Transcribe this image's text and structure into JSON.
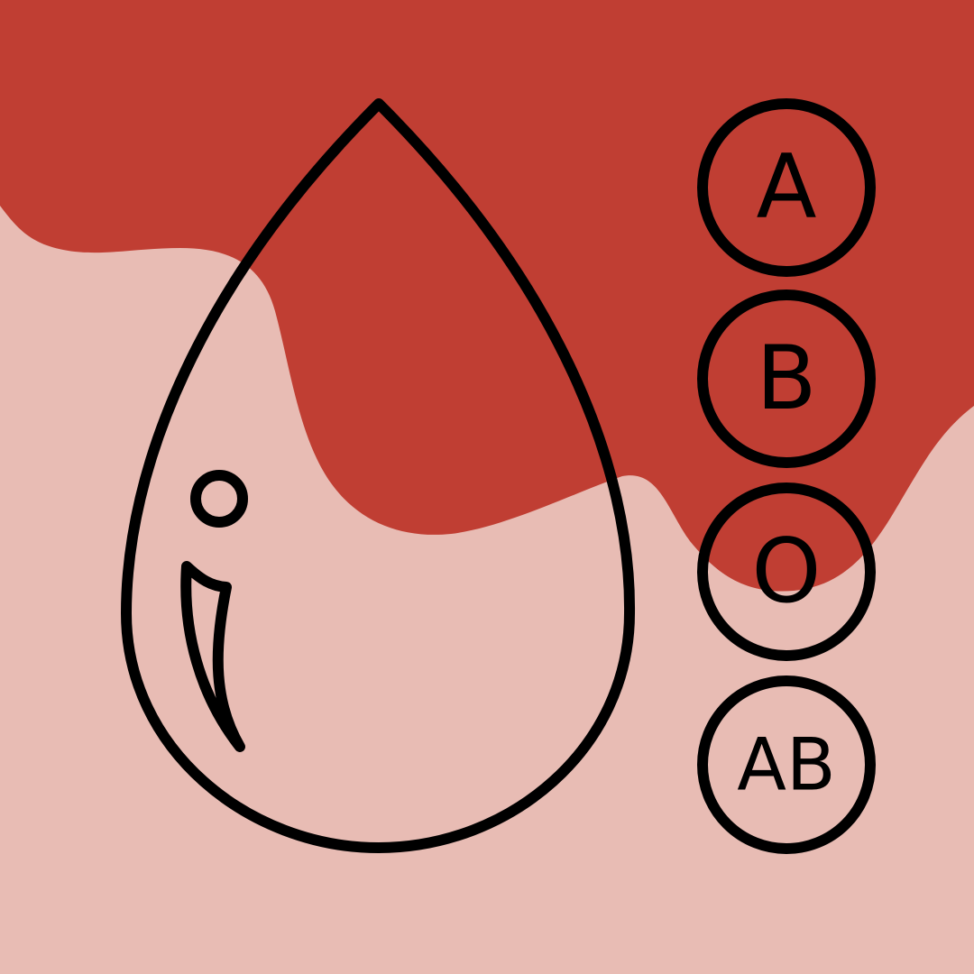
{
  "colors": {
    "background": "#e8bcb4",
    "blood": "#c03e33",
    "outline": "#000000"
  },
  "blood_types": [
    {
      "label": "A",
      "icon": "blood-type-a-icon"
    },
    {
      "label": "B",
      "icon": "blood-type-b-icon"
    },
    {
      "label": "O",
      "icon": "blood-type-o-icon"
    },
    {
      "label": "AB",
      "icon": "blood-type-ab-icon"
    }
  ],
  "illustration": {
    "drop_icon": "blood-drop-icon",
    "splash_icon": "blood-splash-icon"
  }
}
